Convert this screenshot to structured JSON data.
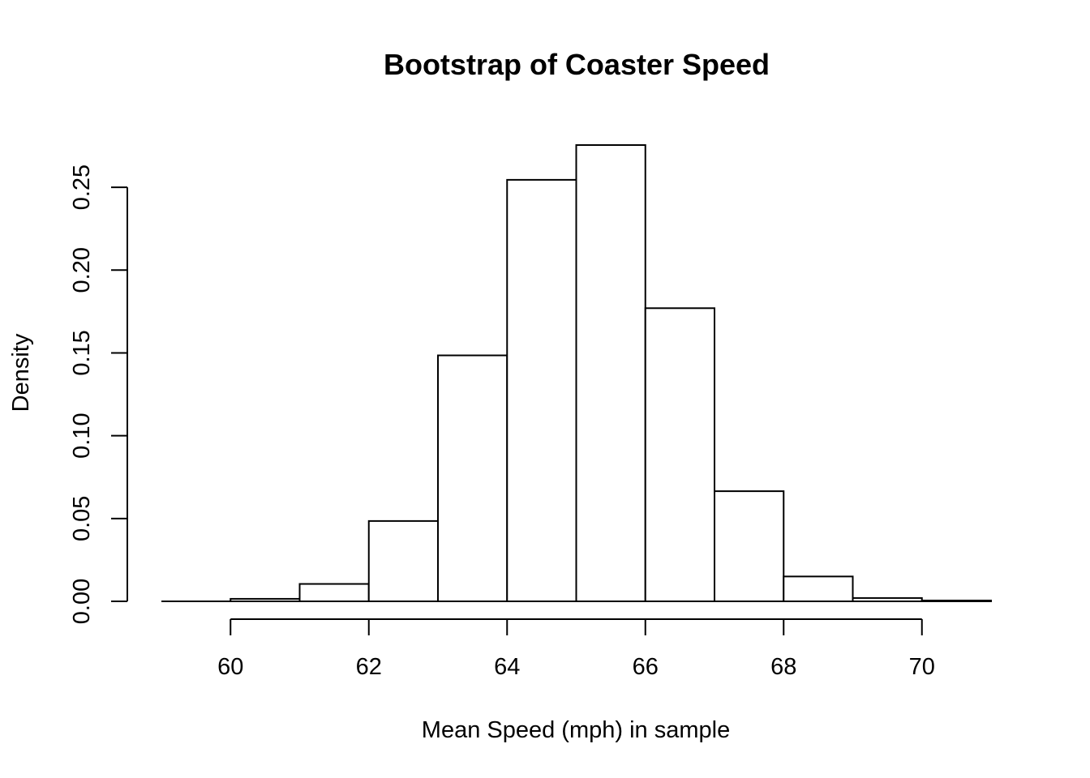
{
  "chart_data": {
    "type": "bar",
    "title": "Bootstrap of Coaster Speed",
    "xlabel": "Mean Speed (mph) in sample",
    "ylabel": "Density",
    "bin_edges": [
      59,
      60,
      61,
      62,
      63,
      64,
      65,
      66,
      67,
      68,
      69,
      70,
      71
    ],
    "values": [
      0.0,
      0.0015,
      0.0105,
      0.0485,
      0.1485,
      0.2545,
      0.2755,
      0.177,
      0.0665,
      0.015,
      0.002,
      0.0005
    ],
    "xlim": [
      59,
      71
    ],
    "ylim": [
      0,
      0.275
    ],
    "x_ticks": [
      60,
      62,
      64,
      66,
      68,
      70
    ],
    "y_ticks": [
      "0.00",
      "0.05",
      "0.10",
      "0.15",
      "0.20",
      "0.25"
    ],
    "grid": false,
    "legend": "none"
  }
}
